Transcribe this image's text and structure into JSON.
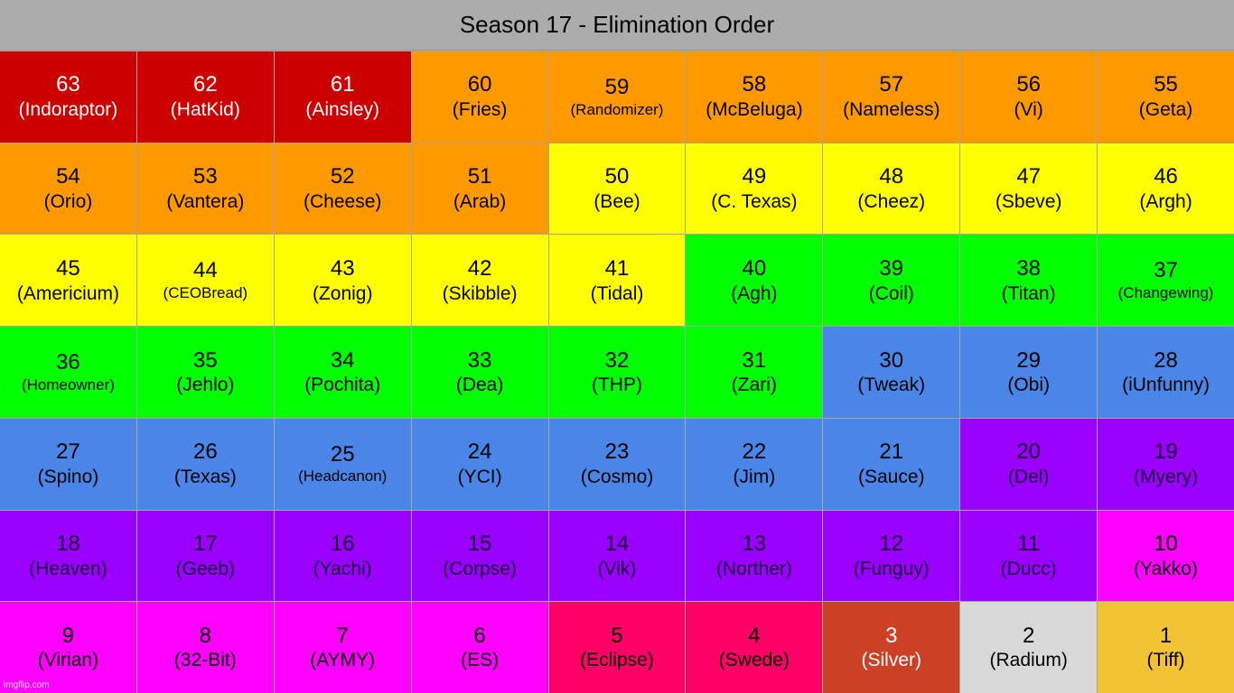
{
  "title": "Season 17 - Elimination Order",
  "watermark": "imgflip.com",
  "colors": {
    "red": "#cc0000",
    "orange": "#ff9900",
    "yellow": "#ffff00",
    "green": "#00ff00",
    "blue": "#4a86e8",
    "purple": "#9900ff",
    "magenta": "#ff00ff",
    "pink": "#ff0066",
    "rust": "#cc4125",
    "lightgray": "#d9d9d9",
    "gold": "#f1c232"
  },
  "cells": [
    {
      "rank": "63",
      "name": "(Indoraptor)",
      "color": "red"
    },
    {
      "rank": "62",
      "name": "(HatKid)",
      "color": "red"
    },
    {
      "rank": "61",
      "name": "(Ainsley)",
      "color": "red"
    },
    {
      "rank": "60",
      "name": "(Fries)",
      "color": "orange"
    },
    {
      "rank": "59",
      "name": "(Randomizer)",
      "color": "orange",
      "small": true
    },
    {
      "rank": "58",
      "name": "(McBeluga)",
      "color": "orange"
    },
    {
      "rank": "57",
      "name": "(Nameless)",
      "color": "orange"
    },
    {
      "rank": "56",
      "name": "(Vi)",
      "color": "orange"
    },
    {
      "rank": "55",
      "name": "(Geta)",
      "color": "orange"
    },
    {
      "rank": "54",
      "name": "(Orio)",
      "color": "orange"
    },
    {
      "rank": "53",
      "name": "(Vantera)",
      "color": "orange"
    },
    {
      "rank": "52",
      "name": "(Cheese)",
      "color": "orange"
    },
    {
      "rank": "51",
      "name": "(Arab)",
      "color": "orange"
    },
    {
      "rank": "50",
      "name": "(Bee)",
      "color": "yellow"
    },
    {
      "rank": "49",
      "name": "(C. Texas)",
      "color": "yellow"
    },
    {
      "rank": "48",
      "name": "(Cheez)",
      "color": "yellow"
    },
    {
      "rank": "47",
      "name": "(Sbeve)",
      "color": "yellow"
    },
    {
      "rank": "46",
      "name": "(Argh)",
      "color": "yellow"
    },
    {
      "rank": "45",
      "name": "(Americium)",
      "color": "yellow"
    },
    {
      "rank": "44",
      "name": "(CEOBread)",
      "color": "yellow",
      "small": true
    },
    {
      "rank": "43",
      "name": "(Zonig)",
      "color": "yellow"
    },
    {
      "rank": "42",
      "name": "(Skibble)",
      "color": "yellow"
    },
    {
      "rank": "41",
      "name": "(Tidal)",
      "color": "yellow"
    },
    {
      "rank": "40",
      "name": "(Agh)",
      "color": "green"
    },
    {
      "rank": "39",
      "name": "(Coil)",
      "color": "green"
    },
    {
      "rank": "38",
      "name": "(Titan)",
      "color": "green"
    },
    {
      "rank": "37",
      "name": "(Changewing)",
      "color": "green",
      "small": true
    },
    {
      "rank": "36",
      "name": "(Homeowner)",
      "color": "green",
      "small": true
    },
    {
      "rank": "35",
      "name": "(Jehlo)",
      "color": "green"
    },
    {
      "rank": "34",
      "name": "(Pochita)",
      "color": "green"
    },
    {
      "rank": "33",
      "name": "(Dea)",
      "color": "green"
    },
    {
      "rank": "32",
      "name": "(THP)",
      "color": "green"
    },
    {
      "rank": "31",
      "name": "(Zari)",
      "color": "green"
    },
    {
      "rank": "30",
      "name": "(Tweak)",
      "color": "blue"
    },
    {
      "rank": "29",
      "name": "(Obi)",
      "color": "blue"
    },
    {
      "rank": "28",
      "name": "(iUnfunny)",
      "color": "blue"
    },
    {
      "rank": "27",
      "name": "(Spino)",
      "color": "blue"
    },
    {
      "rank": "26",
      "name": "(Texas)",
      "color": "blue"
    },
    {
      "rank": "25",
      "name": "(Headcanon)",
      "color": "blue",
      "small": true
    },
    {
      "rank": "24",
      "name": "(YCI)",
      "color": "blue"
    },
    {
      "rank": "23",
      "name": "(Cosmo)",
      "color": "blue"
    },
    {
      "rank": "22",
      "name": "(Jim)",
      "color": "blue"
    },
    {
      "rank": "21",
      "name": "(Sauce)",
      "color": "blue"
    },
    {
      "rank": "20",
      "name": "(Del)",
      "color": "purple"
    },
    {
      "rank": "19",
      "name": "(Myery)",
      "color": "purple"
    },
    {
      "rank": "18",
      "name": "(Heaven)",
      "color": "purple"
    },
    {
      "rank": "17",
      "name": "(Geeb)",
      "color": "purple"
    },
    {
      "rank": "16",
      "name": "(Yachi)",
      "color": "purple"
    },
    {
      "rank": "15",
      "name": "(Corpse)",
      "color": "purple"
    },
    {
      "rank": "14",
      "name": "(Vik)",
      "color": "purple"
    },
    {
      "rank": "13",
      "name": "(Norther)",
      "color": "purple"
    },
    {
      "rank": "12",
      "name": "(Funguy)",
      "color": "purple"
    },
    {
      "rank": "11",
      "name": "(Ducc)",
      "color": "purple"
    },
    {
      "rank": "10",
      "name": "(Yakko)",
      "color": "magenta"
    },
    {
      "rank": "9",
      "name": "(Virian)",
      "color": "magenta"
    },
    {
      "rank": "8",
      "name": "(32-Bit)",
      "color": "magenta"
    },
    {
      "rank": "7",
      "name": "(AYMY)",
      "color": "magenta"
    },
    {
      "rank": "6",
      "name": "(ES)",
      "color": "magenta"
    },
    {
      "rank": "5",
      "name": "(Eclipse)",
      "color": "pink"
    },
    {
      "rank": "4",
      "name": "(Swede)",
      "color": "pink"
    },
    {
      "rank": "3",
      "name": "(Silver)",
      "color": "rust"
    },
    {
      "rank": "2",
      "name": "(Radium)",
      "color": "lightgray"
    },
    {
      "rank": "1",
      "name": "(Tiff)",
      "color": "gold"
    }
  ]
}
